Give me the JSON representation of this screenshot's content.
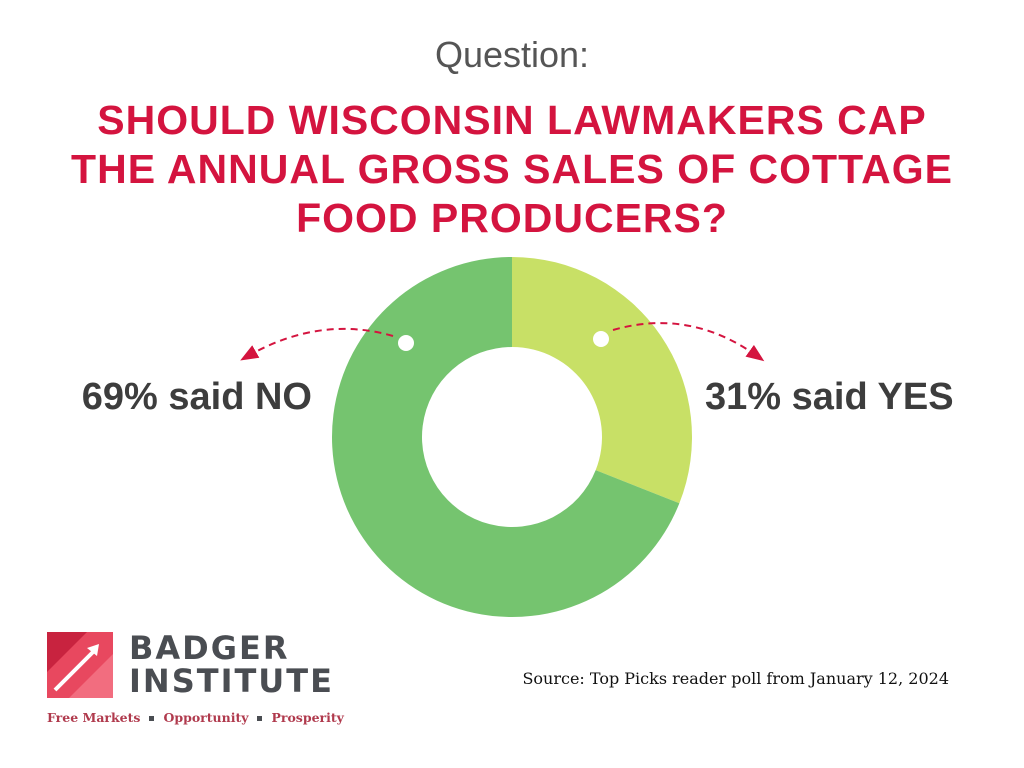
{
  "header": {
    "question_label": "Question:",
    "title": "SHOULD WISCONSIN LAWMAKERS CAP THE ANNUAL GROSS SALES OF COTTAGE FOOD PRODUCERS?"
  },
  "chart_data": {
    "type": "pie",
    "variant": "donut",
    "categories": [
      "NO",
      "YES"
    ],
    "values": [
      69,
      31
    ],
    "colors": [
      "#75c46f",
      "#c8e066"
    ],
    "labels": [
      "69% said NO",
      "31% said YES"
    ],
    "start": "top, clockwise from YES",
    "annotation_arrow_color": "#d4143f"
  },
  "footer": {
    "logo": {
      "line1": "BADGER",
      "line2": "INSTITUTE",
      "tagline": [
        "Free Markets",
        "Opportunity",
        "Prosperity"
      ],
      "icon": "badger-institute-logo-mark"
    },
    "source": "Source: Top Picks reader poll from January 12, 2024"
  },
  "colors": {
    "title": "#d4143f",
    "label": "#3d3d3d",
    "logo_text": "#4a4d52",
    "tagline": "#b03a4d"
  }
}
